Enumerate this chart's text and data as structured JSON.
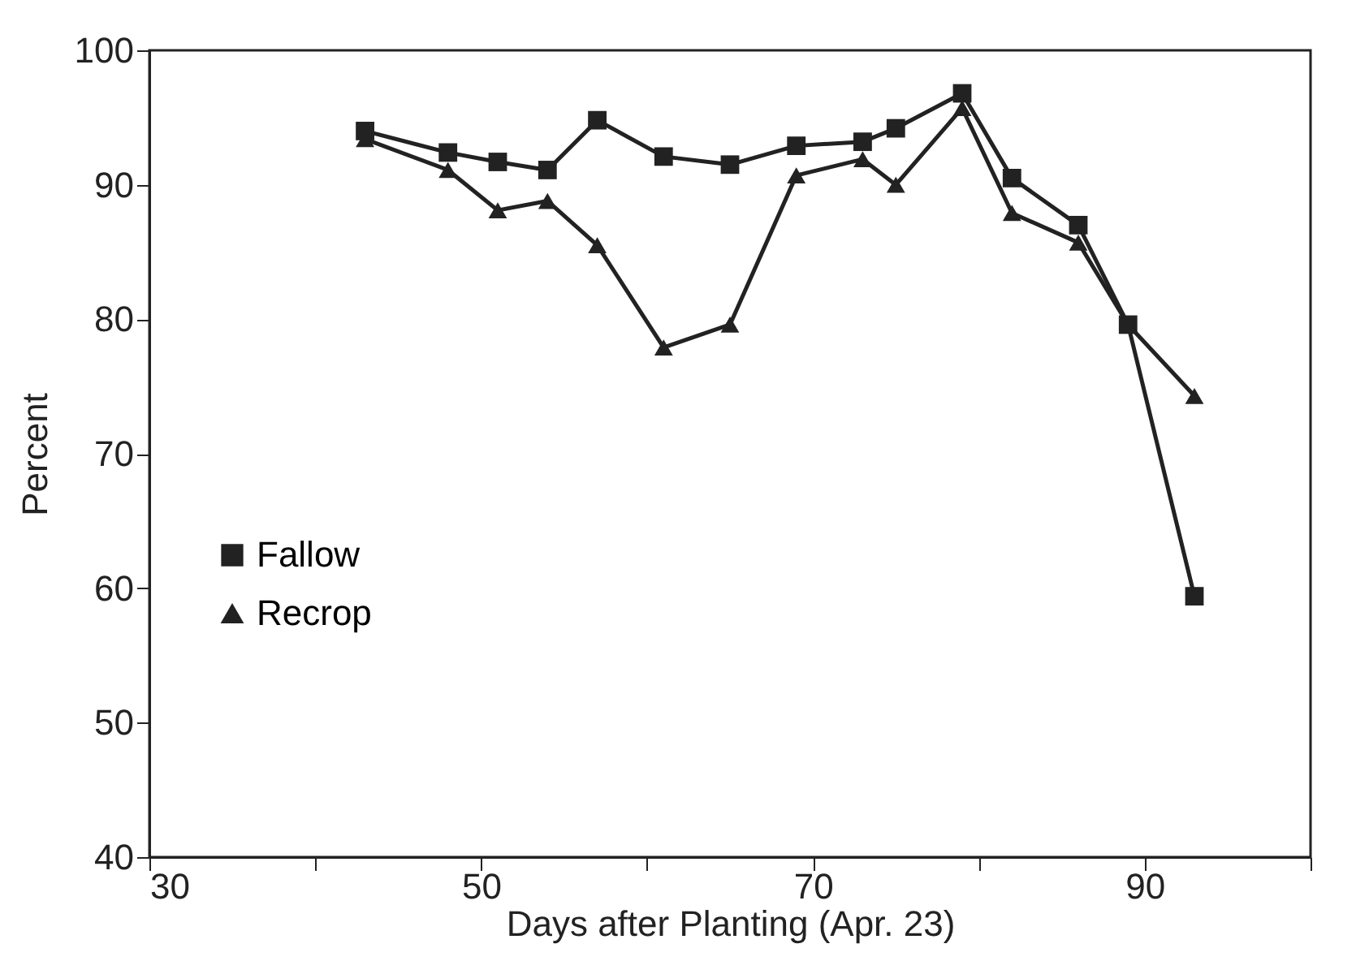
{
  "chart_data": {
    "type": "line",
    "xlabel": "Days after Planting (Apr. 23)",
    "ylabel": "Percent",
    "xlim": [
      30,
      100
    ],
    "ylim": [
      40,
      100
    ],
    "xticks": [
      30,
      {
        "value": 40,
        "label": null
      },
      50,
      {
        "value": 60,
        "label": null
      },
      70,
      {
        "value": 80,
        "label": null
      },
      90,
      {
        "value": 100,
        "label": null
      }
    ],
    "yticks": [
      40,
      50,
      60,
      70,
      80,
      90,
      100
    ],
    "grid": false,
    "legend": "left",
    "line_style": "solid",
    "series": [
      {
        "name": "Fallow",
        "color": "#222222",
        "marker": "square",
        "x": [
          43,
          48,
          51,
          54,
          57,
          61,
          65,
          69,
          73,
          75,
          79,
          82,
          86,
          89,
          93
        ],
        "values": [
          94.0,
          92.4,
          91.7,
          91.1,
          94.8,
          92.1,
          91.5,
          92.9,
          93.2,
          94.2,
          96.8,
          90.5,
          87.0,
          79.6,
          59.4
        ]
      },
      {
        "name": "Recrop",
        "color": "#222222",
        "marker": "triangle",
        "x": [
          43,
          48,
          51,
          54,
          57,
          61,
          65,
          69,
          73,
          75,
          79,
          82,
          86,
          89,
          93
        ],
        "values": [
          93.4,
          91.1,
          88.1,
          88.8,
          85.5,
          77.9,
          79.6,
          90.7,
          91.9,
          90.0,
          95.7,
          87.9,
          85.7,
          79.6,
          74.3
        ]
      }
    ]
  }
}
